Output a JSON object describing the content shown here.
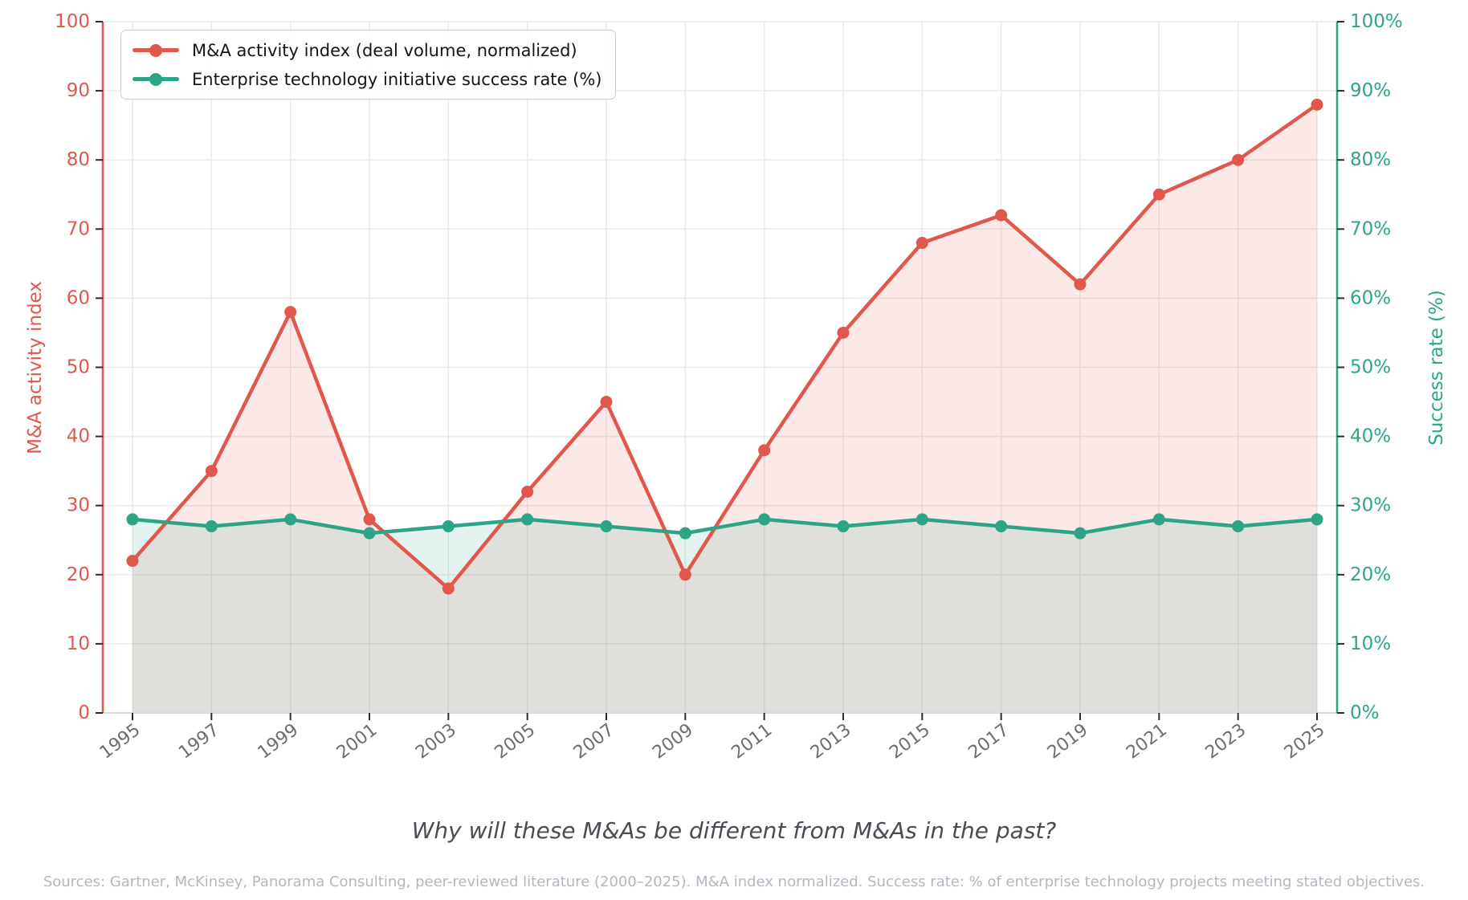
{
  "title": "Why will these M&As be different from M&As in the past?",
  "footer": "Sources: Gartner, McKinsey, Panorama Consulting, peer-reviewed literature (2000–2025). M&A index normalized. Success rate: % of enterprise technology projects meeting stated objectives.",
  "chart_data": {
    "type": "line",
    "x": [
      1995,
      1997,
      1999,
      2001,
      2003,
      2005,
      2007,
      2009,
      2011,
      2013,
      2015,
      2017,
      2019,
      2021,
      2023,
      2025
    ],
    "series": [
      {
        "name": "M&A activity index (deal volume, normalized)",
        "values": [
          22,
          35,
          58,
          28,
          18,
          32,
          45,
          20,
          38,
          55,
          68,
          72,
          62,
          75,
          80,
          88
        ],
        "color": "#e2574b",
        "fill": "rgba(226,87,75,0.13)",
        "axis": "left",
        "marker": "circle"
      },
      {
        "name": "Enterprise technology initiative success rate (%)",
        "values": [
          28,
          27,
          28,
          26,
          27,
          28,
          27,
          26,
          28,
          27,
          28,
          27,
          26,
          28,
          27,
          28
        ],
        "color": "#2ea487",
        "fill": "rgba(46,164,135,0.13)",
        "axis": "right",
        "marker": "circle"
      }
    ],
    "left_axis": {
      "label": "M&A activity index",
      "min": 0,
      "max": 100,
      "ticks": [
        0,
        10,
        20,
        30,
        40,
        50,
        60,
        70,
        80,
        90,
        100
      ],
      "color": "#e2574b"
    },
    "right_axis": {
      "label": "Success rate (%)",
      "min": 0,
      "max": 100,
      "ticks": [
        "0%",
        "10%",
        "20%",
        "30%",
        "40%",
        "50%",
        "60%",
        "70%",
        "80%",
        "90%",
        "100%"
      ],
      "color": "#2ba58c"
    },
    "grid": true,
    "legend_position": "top-left",
    "colors": {
      "grid": "#e9e9e9",
      "x_tick_label": "#6e6e6e",
      "tick_mark": "#2b2b2b",
      "bottom_spine": "#d9d9d9",
      "title": "#474d52",
      "footer": "#b2b8bf",
      "legend_border": "#cccccc",
      "legend_text": "#151515"
    }
  }
}
